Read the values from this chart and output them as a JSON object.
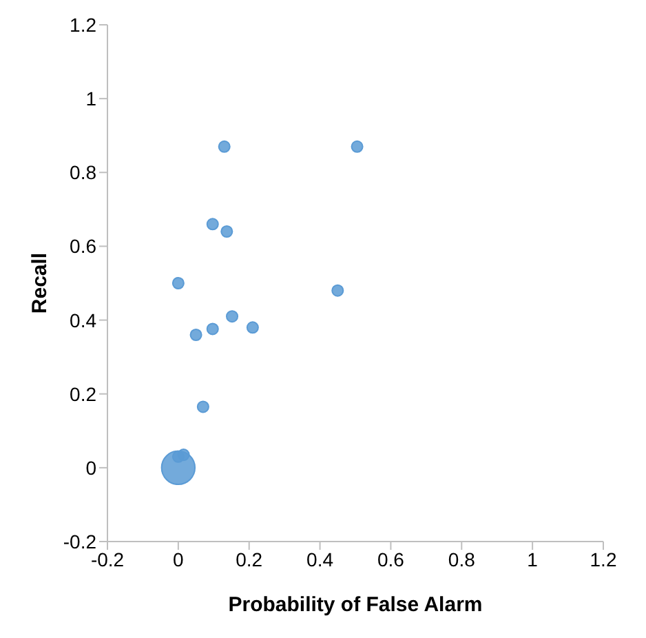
{
  "chart_data": {
    "type": "bubble",
    "xlabel": "Probability  of False Alarm",
    "ylabel": "Recall",
    "x": [
      0.13,
      0.505,
      0.097,
      0.137,
      0,
      0.45,
      0.152,
      0.097,
      0.05,
      0.21,
      0.07,
      0,
      0.015,
      0
    ],
    "values": [
      0.87,
      0.87,
      0.66,
      0.64,
      0.5,
      0.48,
      0.41,
      0.376,
      0.36,
      0.38,
      0.165,
      0.03,
      0.035,
      0
    ],
    "sizes": [
      0.11,
      0.11,
      0.11,
      0.11,
      0.11,
      0.11,
      0.11,
      0.11,
      0.11,
      0.11,
      0.11,
      0.11,
      0.11,
      1
    ],
    "color": "#5b9bd5",
    "xlim": [
      -0.2,
      1.2
    ],
    "xticks": [
      -0.2,
      0,
      0.2,
      0.4,
      0.6,
      0.8,
      1,
      1.2
    ],
    "ylim": [
      -0.2,
      1.2
    ],
    "yticks": [
      -0.2,
      0,
      0.2,
      0.4,
      0.6,
      0.8,
      1,
      1.2
    ],
    "grid": false,
    "legend": false
  }
}
